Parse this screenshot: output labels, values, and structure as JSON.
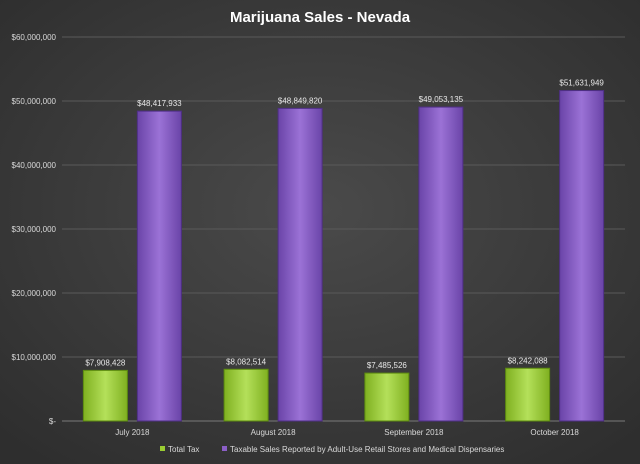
{
  "chart_data": {
    "type": "bar",
    "title": "Marijuana Sales - Nevada",
    "categories": [
      "July 2018",
      "August 2018",
      "September 2018",
      "October 2018"
    ],
    "series": [
      {
        "name": "Total Tax",
        "values": [
          7908428,
          8082514,
          7485526,
          8242088
        ],
        "labels": [
          "$7,908,428",
          "$8,082,514",
          "$7,485,526",
          "$8,242,088"
        ],
        "color": "#9acd32"
      },
      {
        "name": "Taxable Sales Reported by Adult-Use Retail Stores and Medical Dispensaries",
        "values": [
          48417933,
          48849820,
          49053135,
          51631949
        ],
        "labels": [
          "$48,417,933",
          "$48,849,820",
          "$49,053,135",
          "$51,631,949"
        ],
        "color": "#8b5fc7"
      }
    ],
    "ylim": [
      0,
      60000000
    ],
    "yticks": [
      0,
      10000000,
      20000000,
      30000000,
      40000000,
      50000000,
      60000000
    ],
    "ytick_labels": [
      "$-",
      "$10,000,000",
      "$20,000,000",
      "$30,000,000",
      "$40,000,000",
      "$50,000,000",
      "$60,000,000"
    ],
    "grid": true,
    "legend": "bottom",
    "background": "#3a3a3a"
  }
}
